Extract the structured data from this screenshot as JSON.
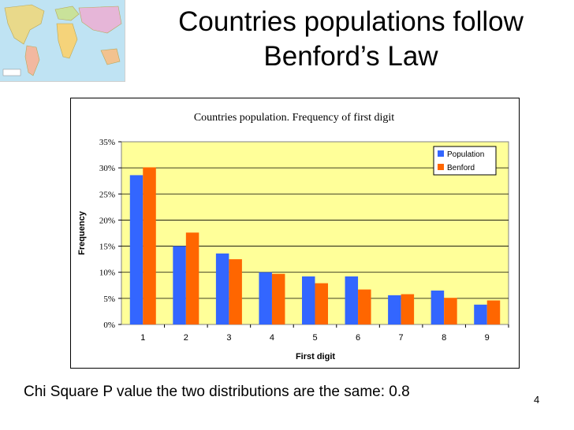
{
  "slide": {
    "title": "Countries populations follow Benford’s Law",
    "footnote": "Chi Square P value the two distributions are the same: 0.8",
    "page_number": "4"
  },
  "colors": {
    "plot_background": "#ffff99",
    "population": "#3366ff",
    "benford": "#ff6600",
    "map_water": "#bfe3f3",
    "map_land": "#e9d98a"
  },
  "chart_data": {
    "type": "bar",
    "title": "Countries population.  Frequency of first digit",
    "xlabel": "First digit",
    "ylabel": "Frequency",
    "categories": [
      "1",
      "2",
      "3",
      "4",
      "5",
      "6",
      "7",
      "8",
      "9"
    ],
    "series": [
      {
        "name": "Population",
        "color": "#3366ff",
        "values": [
          28.6,
          15.0,
          13.6,
          10.0,
          9.2,
          9.2,
          5.6,
          6.5,
          3.8
        ]
      },
      {
        "name": "Benford",
        "color": "#ff6600",
        "values": [
          30.1,
          17.6,
          12.5,
          9.7,
          7.9,
          6.7,
          5.8,
          5.1,
          4.6
        ]
      }
    ],
    "ylim": [
      0,
      35
    ],
    "y_ticks": [
      "0%",
      "5%",
      "10%",
      "15%",
      "20%",
      "25%",
      "30%",
      "35%"
    ],
    "y_tick_values": [
      0,
      5,
      10,
      15,
      20,
      25,
      30,
      35
    ],
    "grid": "horizontal",
    "legend_position": "top-right"
  }
}
